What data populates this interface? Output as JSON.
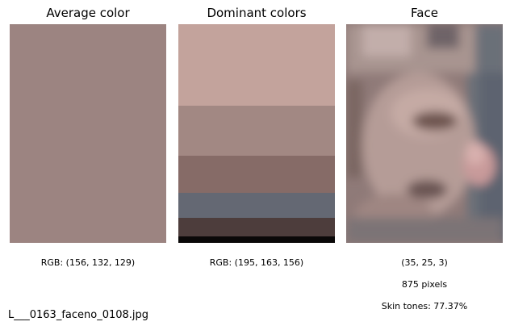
{
  "panels": {
    "average": {
      "title": "Average color",
      "color": "#9c8481",
      "caption": "RGB: (156, 132, 129)"
    },
    "dominant": {
      "title": "Dominant colors",
      "caption": "RGB: (195, 163, 156)",
      "swatches": [
        {
          "color": "#c3a39c",
          "fraction": 0.375
        },
        {
          "color": "#a2888303",
          "fraction": 0.23
        },
        {
          "color": "#866b67",
          "fraction": 0.17
        },
        {
          "color": "#646873",
          "fraction": 0.115
        },
        {
          "color": "#4d3d3c",
          "fraction": 0.085
        },
        {
          "color": "#0a0808",
          "fraction": 0.03
        }
      ]
    },
    "face": {
      "title": "Face",
      "dims": "(35, 25, 3)",
      "pixels": "875 pixels",
      "skin": "Skin tones: 77.37%"
    }
  },
  "filename": "L___0163_faceno_0108.jpg"
}
